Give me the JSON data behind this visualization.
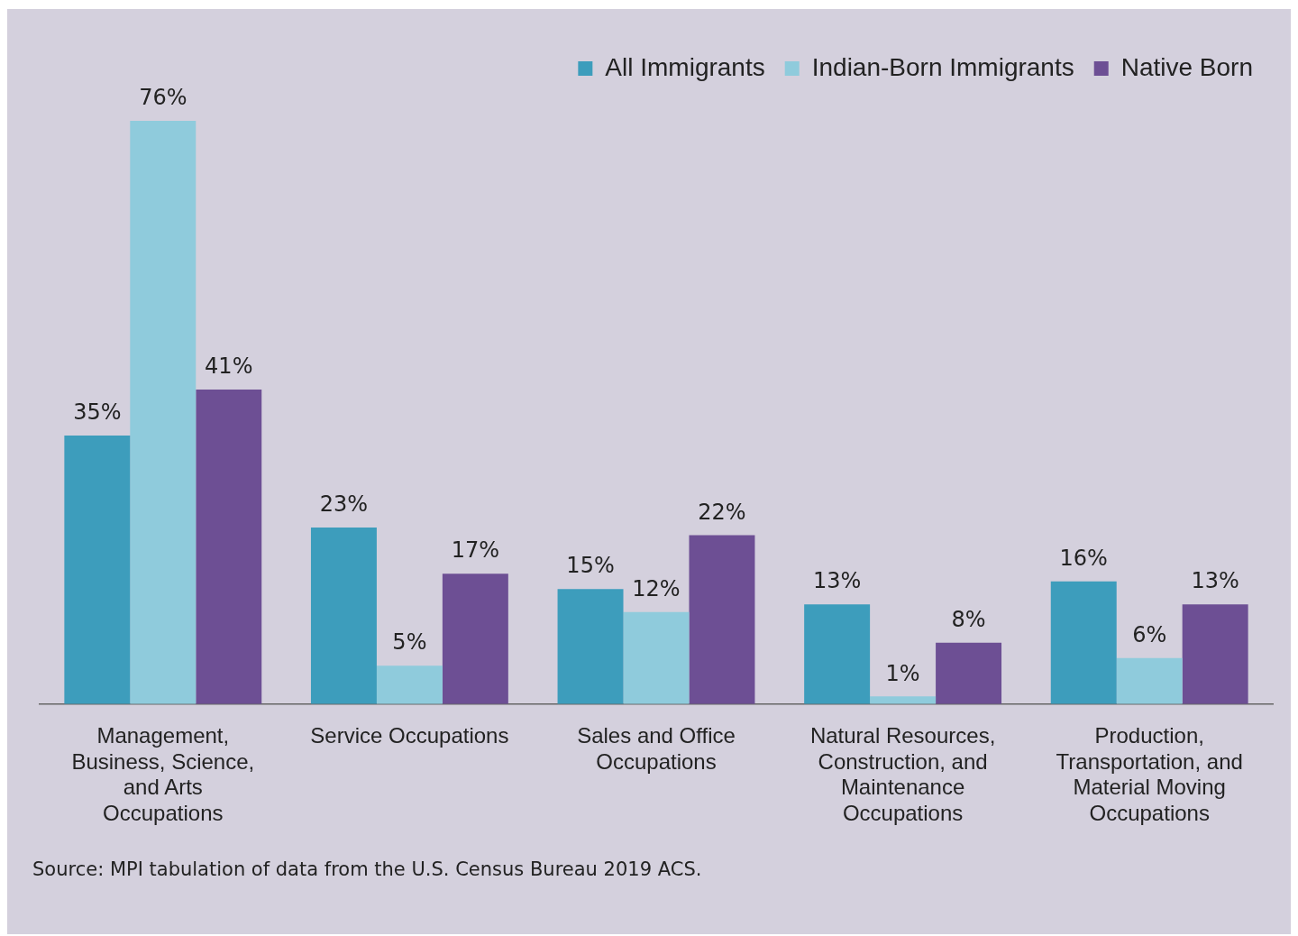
{
  "chart_data": {
    "type": "bar",
    "categories": [
      "Management, Business, Science, and Arts Occupations",
      "Service Occupations",
      "Sales and Office Occupations",
      "Natural Resources, Construction, and Maintenance Occupations",
      "Production, Transportation, and Material Moving Occupations"
    ],
    "series": [
      {
        "name": "All Immigrants",
        "color": "#3d9dbc",
        "values": [
          35,
          23,
          15,
          13,
          16
        ],
        "value_labels": [
          "35%",
          "23%",
          "15%",
          "13%",
          "16%"
        ]
      },
      {
        "name": "Indian-Born Immigrants",
        "color": "#8fcbdc",
        "values": [
          76,
          5,
          12,
          1,
          6
        ],
        "value_labels": [
          "76%",
          "5%",
          "12%",
          "1%",
          "6%"
        ]
      },
      {
        "name": "Native Born",
        "color": "#6d4f94",
        "values": [
          41,
          17,
          22,
          8,
          13
        ],
        "value_labels": [
          "41%",
          "17%",
          "22%",
          "8%",
          "13%"
        ]
      }
    ],
    "legend": "top right",
    "grid": false,
    "annotations": [
      "Source: MPI tabulation of data from the U.S. Census Bureau 2019 ACS."
    ]
  }
}
